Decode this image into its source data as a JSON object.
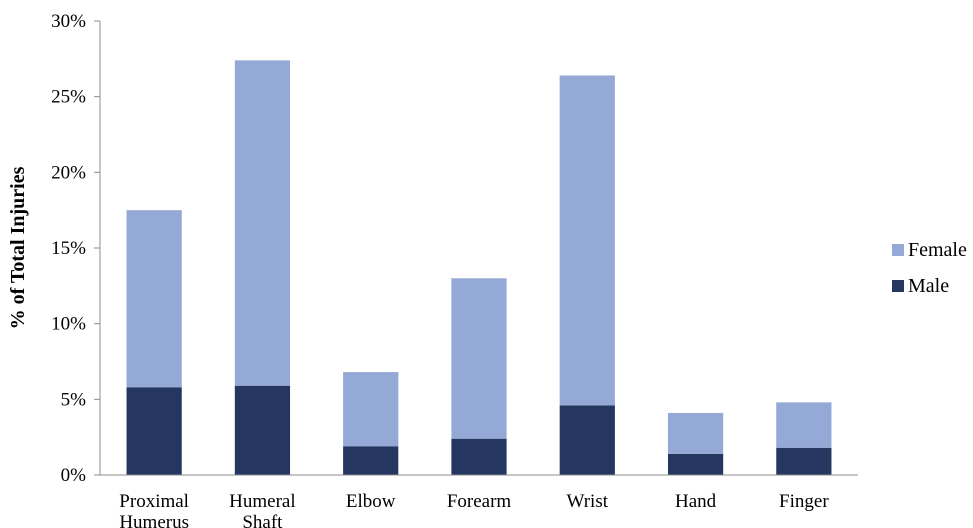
{
  "chart_data": {
    "type": "bar",
    "stacked": true,
    "title": "",
    "xlabel": "",
    "ylabel": "% of Total Injuries",
    "ylim": [
      0,
      30
    ],
    "y_ticks": [
      "0%",
      "5%",
      "10%",
      "15%",
      "20%",
      "25%",
      "30%"
    ],
    "y_tick_values": [
      0,
      5,
      10,
      15,
      20,
      25,
      30
    ],
    "grid": false,
    "legend_position": "right",
    "categories": [
      [
        "Proximal",
        "Humerus"
      ],
      [
        "Humeral",
        "Shaft"
      ],
      [
        "Elbow"
      ],
      [
        "Forearm"
      ],
      [
        "Wrist"
      ],
      [
        "Hand"
      ],
      [
        "Finger"
      ]
    ],
    "series": [
      {
        "name": "Male",
        "color": "#253761",
        "values": [
          5.8,
          5.9,
          1.9,
          2.4,
          4.6,
          1.4,
          1.8
        ]
      },
      {
        "name": "Female",
        "color": "#95A9D6",
        "values": [
          11.7,
          21.5,
          4.9,
          10.6,
          21.8,
          2.7,
          3.0
        ]
      }
    ],
    "legend_order": [
      "Female",
      "Male"
    ]
  }
}
